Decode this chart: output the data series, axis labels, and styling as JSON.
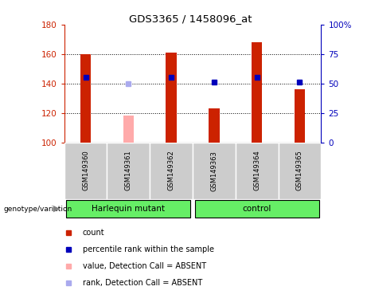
{
  "title": "GDS3365 / 1458096_at",
  "samples": [
    "GSM149360",
    "GSM149361",
    "GSM149362",
    "GSM149363",
    "GSM149364",
    "GSM149365"
  ],
  "counts": [
    160,
    118,
    161,
    123,
    168,
    136
  ],
  "ranks": [
    144,
    140,
    144,
    141,
    144,
    141
  ],
  "absent": [
    false,
    true,
    false,
    false,
    false,
    false
  ],
  "ylim_left": [
    100,
    180
  ],
  "ylim_right": [
    0,
    100
  ],
  "yticks_left": [
    100,
    120,
    140,
    160,
    180
  ],
  "yticks_right": [
    0,
    25,
    50,
    75,
    100
  ],
  "ytick_right_labels": [
    "0",
    "25",
    "50",
    "75",
    "100%"
  ],
  "dotted_lines": [
    120,
    140,
    160
  ],
  "bar_color_present": "#cc2200",
  "bar_color_absent": "#ffaaaa",
  "rank_color_present": "#0000bb",
  "rank_color_absent": "#aaaaee",
  "bg_color_plot": "#ffffff",
  "bg_color_sample": "#cccccc",
  "bg_color_group": "#66ee66",
  "group_spans": [
    [
      0,
      2,
      "Harlequin mutant"
    ],
    [
      3,
      5,
      "control"
    ]
  ],
  "legend_items": [
    [
      "#cc2200",
      "count"
    ],
    [
      "#0000bb",
      "percentile rank within the sample"
    ],
    [
      "#ffaaaa",
      "value, Detection Call = ABSENT"
    ],
    [
      "#aaaaee",
      "rank, Detection Call = ABSENT"
    ]
  ]
}
